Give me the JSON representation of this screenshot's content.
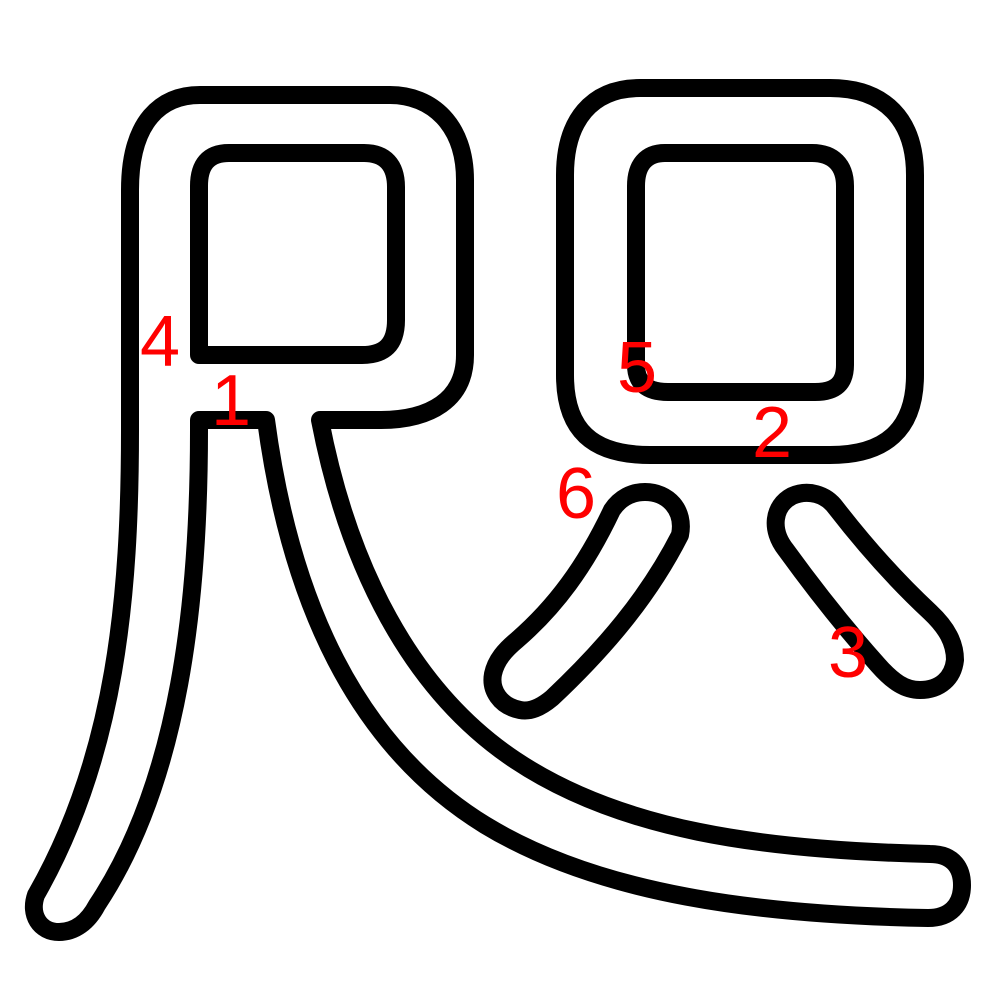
{
  "colors": {
    "outline": "#000000",
    "numbers": "#ff0000",
    "background": "#ffffff"
  },
  "labels": {
    "n1": "1",
    "n2": "2",
    "n3": "3",
    "n4": "4",
    "n5": "5",
    "n6": "6"
  }
}
